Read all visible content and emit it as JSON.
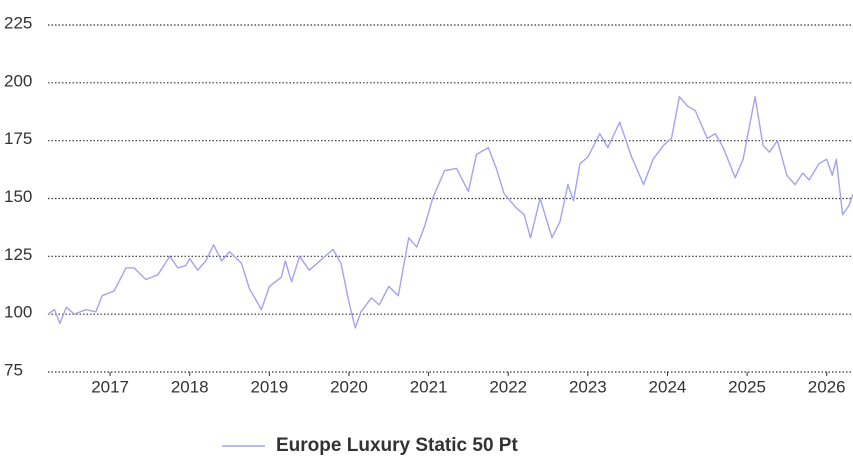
{
  "chart_data": {
    "type": "line",
    "series": [
      {
        "name": "Europe Luxury Static 50 Pt",
        "color": "#a3a3f0",
        "x": [
          2016.22,
          2016.3,
          2016.37,
          2016.45,
          2016.55,
          2016.7,
          2016.82,
          2016.9,
          2017.05,
          2017.2,
          2017.3,
          2017.45,
          2017.6,
          2017.75,
          2017.85,
          2017.95,
          2018.0,
          2018.1,
          2018.2,
          2018.3,
          2018.4,
          2018.5,
          2018.65,
          2018.75,
          2018.9,
          2019.0,
          2019.15,
          2019.2,
          2019.28,
          2019.38,
          2019.5,
          2019.6,
          2019.8,
          2019.9,
          2020.0,
          2020.08,
          2020.15,
          2020.28,
          2020.38,
          2020.5,
          2020.62,
          2020.75,
          2020.85,
          2020.95,
          2021.05,
          2021.2,
          2021.35,
          2021.5,
          2021.6,
          2021.75,
          2021.85,
          2021.95,
          2022.1,
          2022.2,
          2022.28,
          2022.4,
          2022.55,
          2022.65,
          2022.75,
          2022.82,
          2022.9,
          2023.0,
          2023.15,
          2023.25,
          2023.4,
          2023.55,
          2023.7,
          2023.82,
          2023.95,
          2024.05,
          2024.15,
          2024.25,
          2024.35,
          2024.5,
          2024.6,
          2024.7,
          2024.85,
          2024.95,
          2025.1,
          2025.2,
          2025.28,
          2025.38,
          2025.5,
          2025.6,
          2025.7,
          2025.78,
          2025.9,
          2026.0,
          2026.07,
          2026.12,
          2026.2,
          2026.28,
          2026.33
        ],
        "values": [
          100,
          102,
          96,
          103,
          100,
          102,
          101,
          108,
          110,
          120,
          120,
          115,
          117,
          125,
          120,
          121,
          124,
          119,
          123,
          130,
          123,
          127,
          122,
          111,
          102,
          112,
          116,
          123,
          114,
          125,
          119,
          122,
          128,
          122,
          105,
          94,
          101,
          107,
          104,
          112,
          108,
          133,
          129,
          138,
          150,
          162,
          163,
          153,
          169,
          172,
          163,
          152,
          146,
          143,
          133,
          150,
          133,
          140,
          156,
          149,
          165,
          168,
          178,
          172,
          183,
          168,
          156,
          167,
          173,
          176,
          194,
          190,
          188,
          176,
          178,
          172,
          159,
          167,
          194,
          173,
          170,
          175,
          160,
          156,
          161,
          158,
          165,
          167,
          160,
          167,
          143,
          147,
          152
        ]
      }
    ],
    "xlim": [
      2016.22,
      2026.33
    ],
    "xticks": [
      2017,
      2018,
      2019,
      2020,
      2021,
      2022,
      2023,
      2024,
      2025,
      2026
    ],
    "ylim": [
      75,
      225
    ],
    "yticks": [
      75,
      100,
      125,
      150,
      175,
      200,
      225
    ],
    "grid": true
  }
}
